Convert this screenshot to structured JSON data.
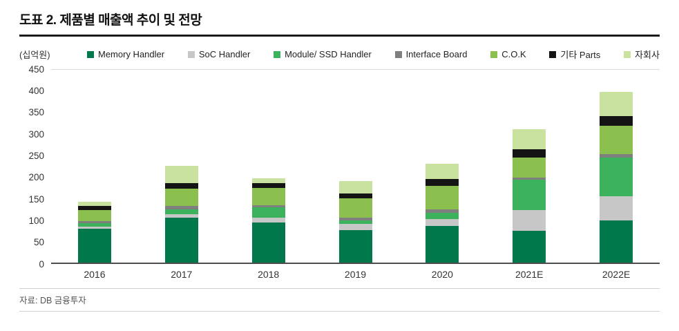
{
  "page": {
    "title": "도표 2. 제품별 매출액 추이 및 전망",
    "unit_label": "(십억원)",
    "source": "자료: DB 금융투자"
  },
  "chart_data": {
    "type": "bar",
    "stacked": true,
    "title": "제품별 매출액 추이 및 전망",
    "ylabel": "(십억원)",
    "xlabel": "",
    "ylim": [
      0,
      450
    ],
    "ytick_step": 50,
    "grid": false,
    "legend_position": "top",
    "categories": [
      "2016",
      "2017",
      "2018",
      "2019",
      "2020",
      "2021E",
      "2022E"
    ],
    "series": [
      {
        "name": "Memory Handler",
        "color": "#00784b",
        "values": [
          78,
          103,
          93,
          75,
          85,
          73,
          98
        ]
      },
      {
        "name": "SoC Handler",
        "color": "#c7c7c7",
        "values": [
          5,
          8,
          10,
          15,
          15,
          48,
          55
        ]
      },
      {
        "name": "Module/ SSD Handler",
        "color": "#3cb25c",
        "values": [
          8,
          12,
          25,
          8,
          15,
          70,
          90
        ]
      },
      {
        "name": "Interface Board",
        "color": "#7f7f7f",
        "values": [
          5,
          8,
          5,
          5,
          8,
          6,
          8
        ]
      },
      {
        "name": "C.O.K",
        "color": "#8bbf4e",
        "values": [
          25,
          40,
          40,
          45,
          55,
          45,
          65
        ]
      },
      {
        "name": "기타 Parts",
        "color": "#141414",
        "values": [
          10,
          12,
          10,
          12,
          15,
          20,
          22
        ]
      },
      {
        "name": "자회사",
        "color": "#c9e2a0",
        "values": [
          10,
          40,
          12,
          28,
          35,
          46,
          57
        ]
      }
    ]
  }
}
